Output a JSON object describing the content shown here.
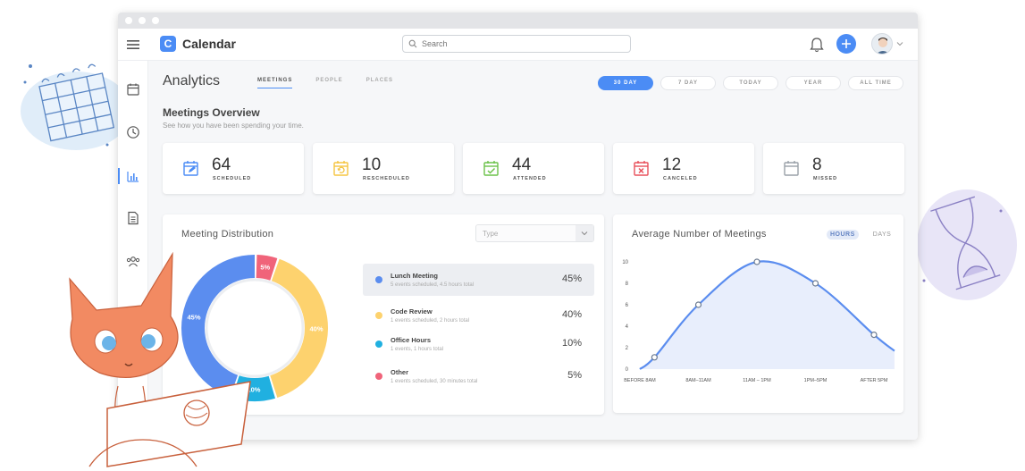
{
  "app": {
    "logo_letter": "C",
    "name": "Calendar",
    "search_placeholder": "Search",
    "accent_color": "#4b8cf5"
  },
  "sidebar": {
    "items": [
      {
        "icon": "calendar-icon"
      },
      {
        "icon": "clock-icon"
      },
      {
        "icon": "bar-chart-icon",
        "active": true
      },
      {
        "icon": "document-icon"
      },
      {
        "icon": "people-icon"
      }
    ]
  },
  "page": {
    "title": "Analytics",
    "tabs": [
      "MEETINGS",
      "PEOPLE",
      "PLACES"
    ],
    "ranges": [
      "30 DAY",
      "7 DAY",
      "TODAY",
      "YEAR",
      "ALL TIME"
    ],
    "section_title": "Meetings Overview",
    "section_subtitle": "See how you have been spending your time."
  },
  "stats": [
    {
      "value": "64",
      "label": "SCHEDULED",
      "icon": "calendar-edit-icon",
      "color": "#4b8cf5"
    },
    {
      "value": "10",
      "label": "RESCHEDULED",
      "icon": "calendar-reschedule-icon",
      "color": "#f5c542"
    },
    {
      "value": "44",
      "label": "ATTENDED",
      "icon": "calendar-check-icon",
      "color": "#6cc24a"
    },
    {
      "value": "12",
      "label": "CANCELED",
      "icon": "calendar-cancel-icon",
      "color": "#e8505b"
    },
    {
      "value": "8",
      "label": "MISSED",
      "icon": "calendar-missed-icon",
      "color": "#9aa1a9"
    }
  ],
  "distribution": {
    "title": "Meeting Distribution",
    "type_placeholder": "Type",
    "items": [
      {
        "name": "Lunch Meeting",
        "detail": "5 events scheduled, 4.5 hours total",
        "percent": "45%",
        "value": 45,
        "color": "#5b8def"
      },
      {
        "name": "Code Review",
        "detail": "1 events scheduled, 2 hours total",
        "percent": "40%",
        "value": 40,
        "color": "#fdd26e"
      },
      {
        "name": "Office Hours",
        "detail": "1 events, 1 hours total",
        "percent": "10%",
        "value": 10,
        "color": "#20b0e0"
      },
      {
        "name": "Other",
        "detail": "1 events scheduled, 30 minutes total",
        "percent": "5%",
        "value": 5,
        "color": "#f0647a"
      }
    ]
  },
  "average": {
    "title": "Average Number of Meetings",
    "units": [
      "HOURS",
      "DAYS"
    ]
  },
  "chart_data": {
    "type": "line",
    "title": "Average Number of Meetings",
    "x": [
      "BEFORE 8AM",
      "8AM–11AM",
      "11AM – 1PM",
      "1PM–5PM",
      "AFTER 5PM"
    ],
    "y_ticks": [
      0,
      2,
      4,
      6,
      8,
      10
    ],
    "ylim": [
      0,
      10
    ],
    "points": [
      {
        "x": 0,
        "y": 0
      },
      {
        "x": 0.25,
        "y": 1.1
      },
      {
        "x": 1.0,
        "y": 6.0
      },
      {
        "x": 2.0,
        "y": 10.0
      },
      {
        "x": 3.0,
        "y": 8.0
      },
      {
        "x": 4.0,
        "y": 3.2
      },
      {
        "x": 4.35,
        "y": 1.7
      }
    ],
    "marked_points": [
      {
        "x": 0.25,
        "y": 1.1
      },
      {
        "x": 1.0,
        "y": 6.0
      },
      {
        "x": 2.0,
        "y": 10.0
      },
      {
        "x": 3.0,
        "y": 8.0
      },
      {
        "x": 4.0,
        "y": 3.2
      }
    ],
    "series_color": "#5b8def",
    "fill_color": "#e8eefc"
  }
}
